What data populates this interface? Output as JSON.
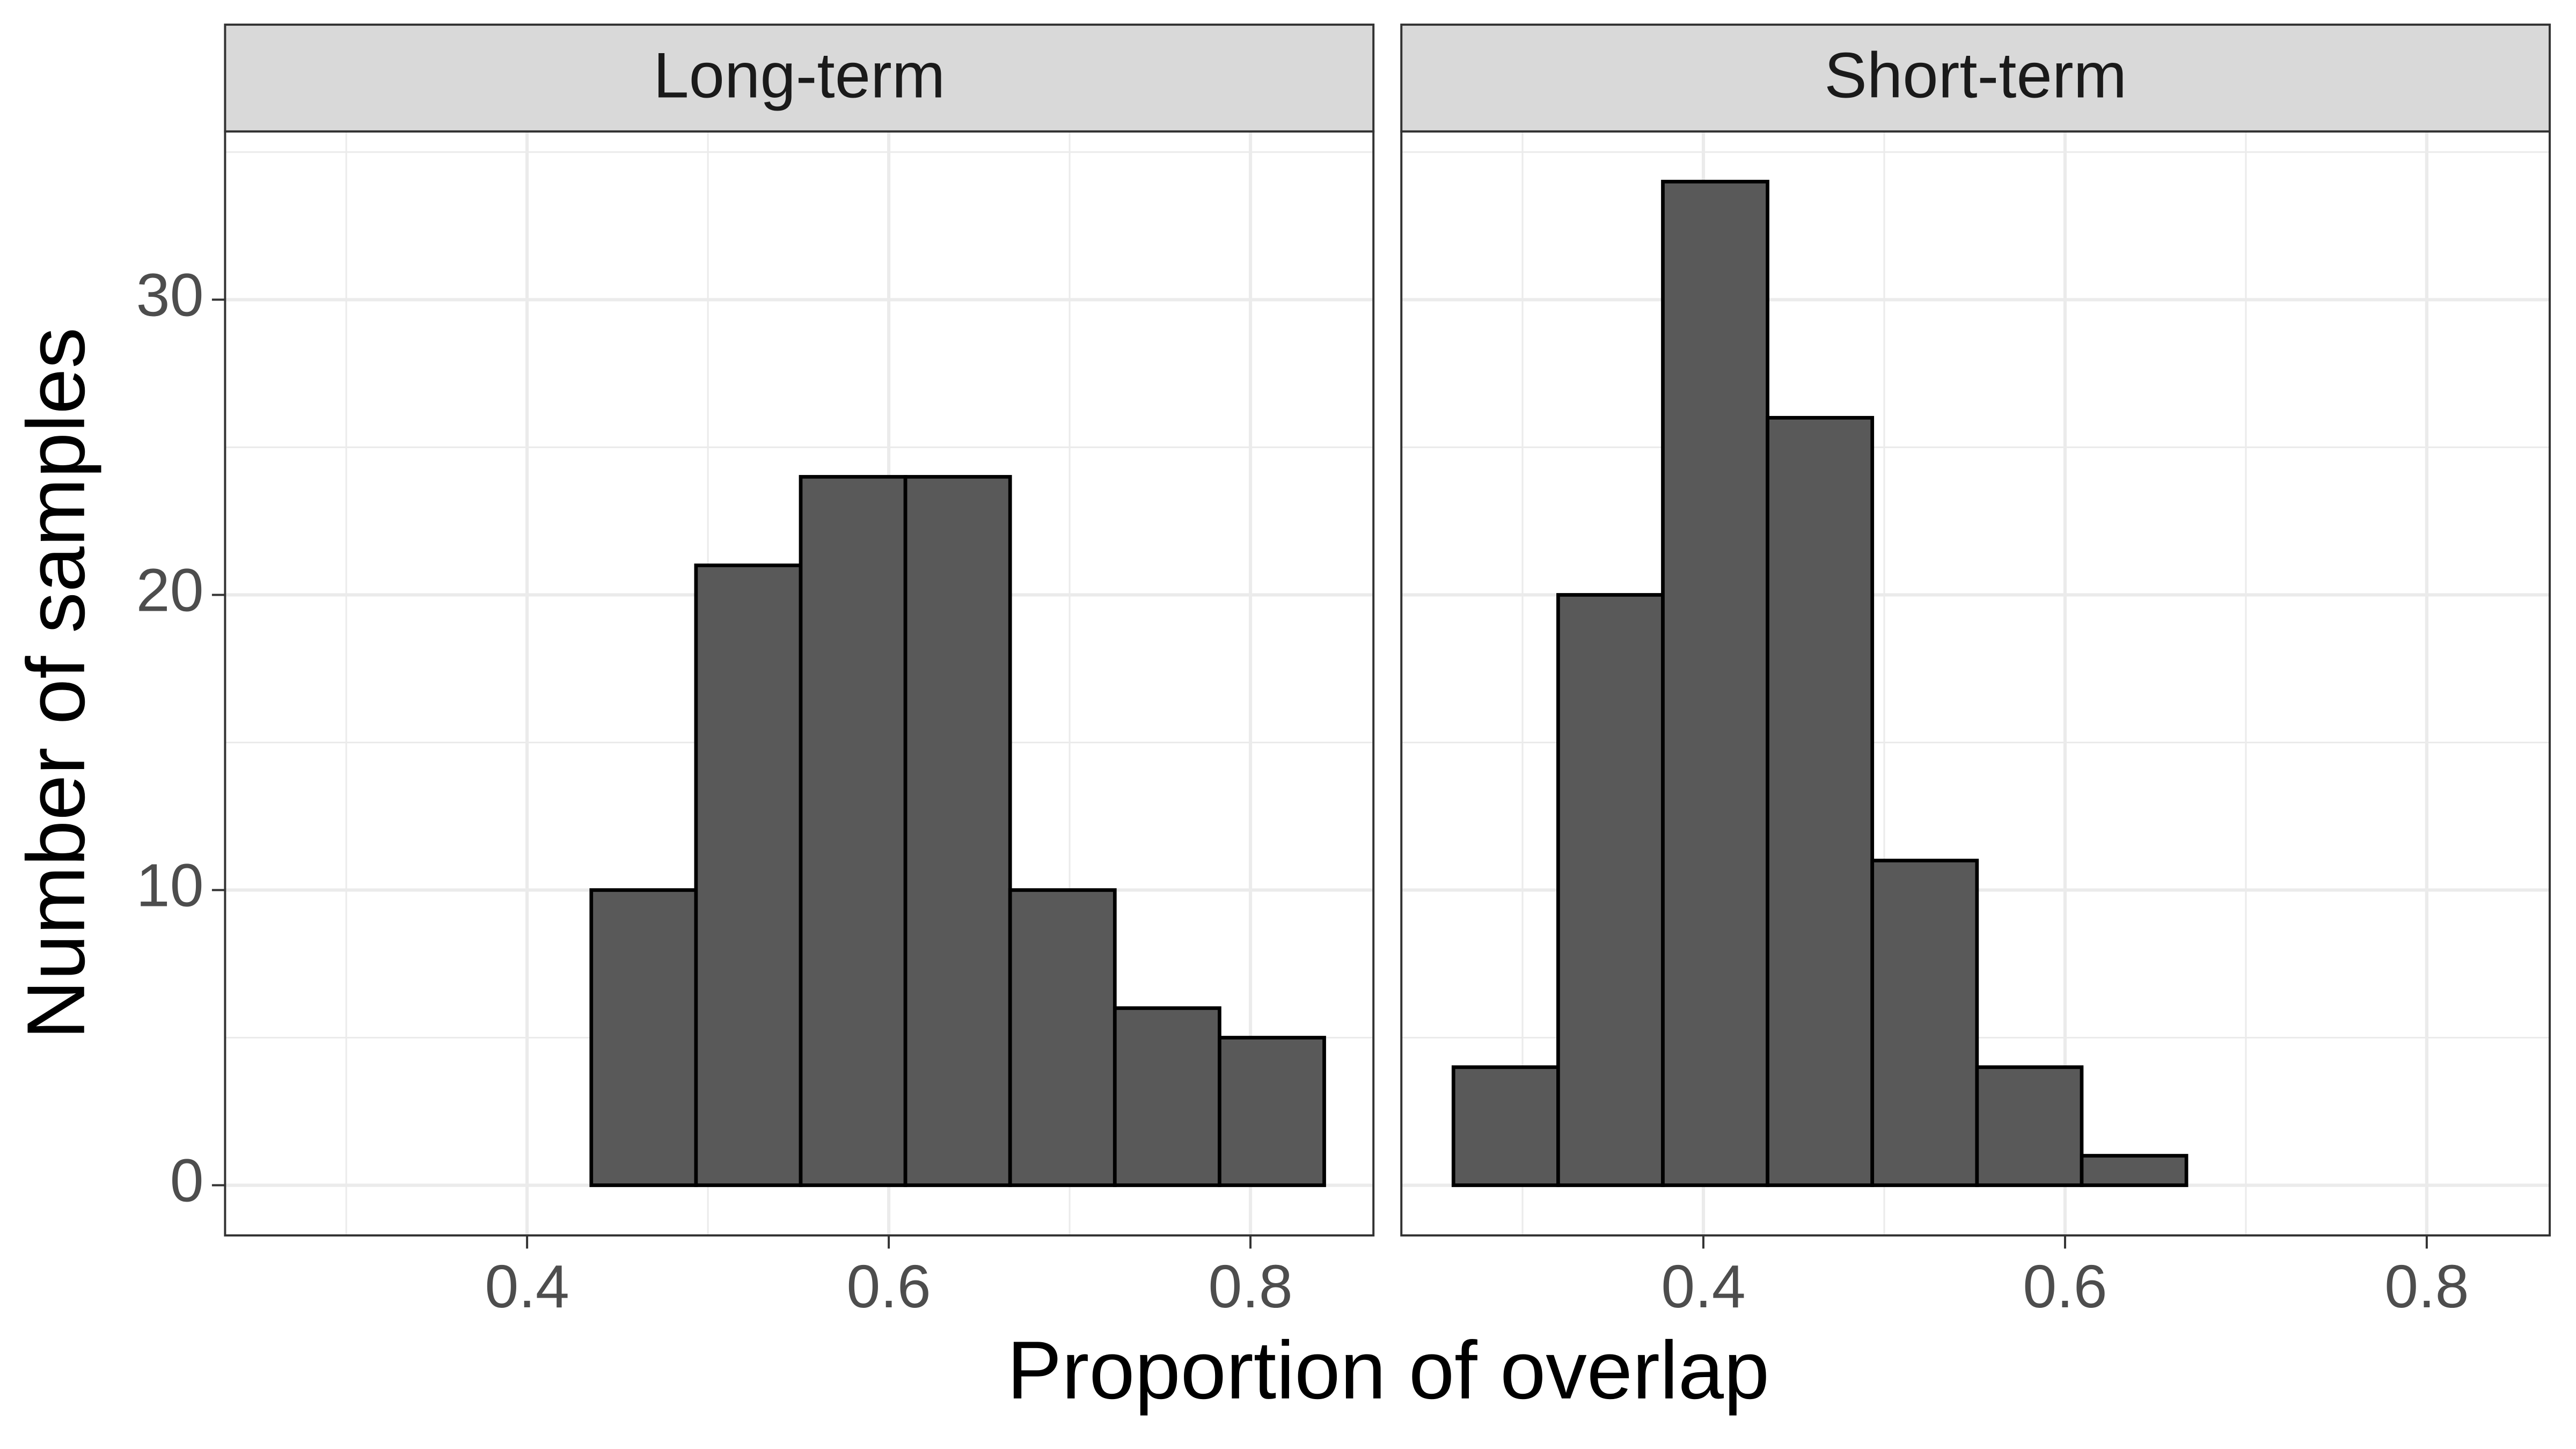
{
  "chart_data": {
    "type": "histogram",
    "x_label": "Proportion of overlap",
    "y_label": "Number of samples",
    "bins": [
      0.2618,
      0.3197,
      0.3776,
      0.4355,
      0.4934,
      0.5513,
      0.6092,
      0.6671,
      0.725,
      0.7829,
      0.8408
    ],
    "panels": [
      {
        "title": "Long-term",
        "values": [
          0,
          0,
          0,
          10,
          21,
          24,
          24,
          10,
          6,
          5
        ]
      },
      {
        "title": "Short-term",
        "values": [
          4,
          20,
          34,
          26,
          11,
          4,
          1,
          0,
          0,
          0
        ]
      }
    ],
    "color": "#595959",
    "edge_color": "#000000",
    "xlim": [
      0.233,
      0.868
    ],
    "ylim": [
      -1.7,
      35.7
    ],
    "xticks": [
      0.4,
      0.6,
      0.8
    ],
    "yticks": [
      0,
      10,
      20,
      30
    ],
    "x_minor_grid": [
      0.3,
      0.5,
      0.7
    ],
    "y_minor_grid": [
      5,
      15,
      25,
      35
    ],
    "grid": true
  }
}
